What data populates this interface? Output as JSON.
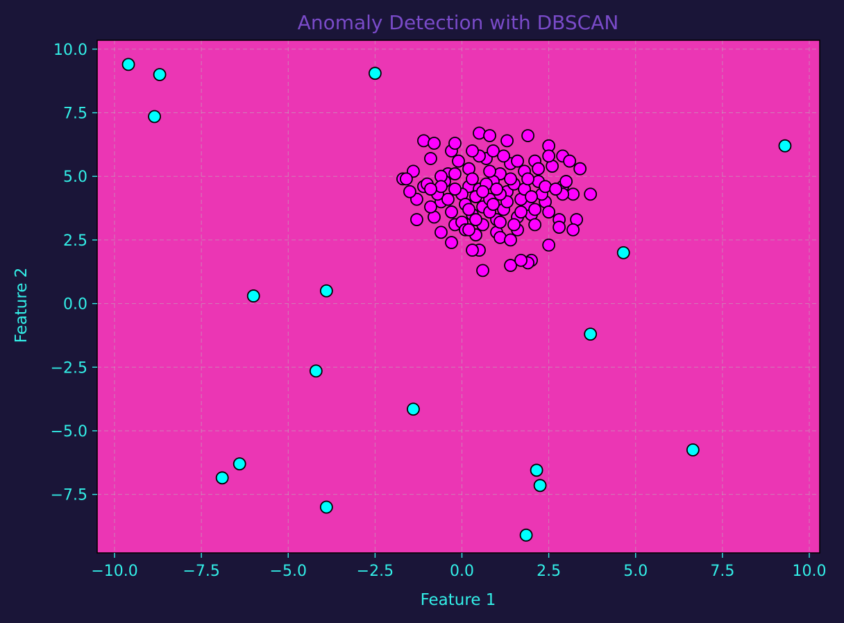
{
  "chart_data": {
    "type": "scatter",
    "title": "Anomaly Detection with DBSCAN",
    "xlabel": "Feature 1",
    "ylabel": "Feature 2",
    "xlim": [
      -10.5,
      10.3
    ],
    "ylim": [
      -9.8,
      10.35
    ],
    "xticks": [
      -10.0,
      -7.5,
      -5.0,
      -2.5,
      0.0,
      2.5,
      5.0,
      7.5,
      10.0
    ],
    "yticks": [
      -7.5,
      -5.0,
      -2.5,
      0.0,
      2.5,
      5.0,
      7.5,
      10.0
    ],
    "xtick_labels": [
      "−10.0",
      "−7.5",
      "−5.0",
      "−2.5",
      "0.0",
      "2.5",
      "5.0",
      "7.5",
      "10.0"
    ],
    "ytick_labels": [
      "−7.5",
      "−5.0",
      "−2.5",
      "0.0",
      "2.5",
      "5.0",
      "7.5",
      "10.0"
    ],
    "grid": true,
    "colors": {
      "background": "#1a1538",
      "plot_area": "#eb36b4",
      "cluster": "#ff00ff",
      "anomaly": "#00ffff",
      "edge": "#000000",
      "axis_text": "#33f0e8",
      "title": "#7a4bc9",
      "grid": "#b9b9b9"
    },
    "series": [
      {
        "points": [
          [
            1.8,
            5.2
          ],
          [
            0.2,
            4.6
          ],
          [
            -0.6,
            4.0
          ],
          [
            1.0,
            3.3
          ],
          [
            0.7,
            5.7
          ],
          [
            -0.2,
            3.1
          ],
          [
            2.4,
            4.0
          ],
          [
            0.4,
            2.7
          ],
          [
            1.3,
            4.4
          ],
          [
            -1.1,
            4.6
          ],
          [
            0.9,
            6.0
          ],
          [
            2.0,
            3.5
          ],
          [
            -0.4,
            5.1
          ],
          [
            0.6,
            3.8
          ],
          [
            1.6,
            2.9
          ],
          [
            0.0,
            4.3
          ],
          [
            2.2,
            4.8
          ],
          [
            -0.8,
            3.4
          ],
          [
            1.1,
            5.1
          ],
          [
            0.3,
            3.5
          ],
          [
            1.5,
            4.7
          ],
          [
            -0.1,
            5.6
          ],
          [
            0.8,
            4.1
          ],
          [
            2.6,
            5.4
          ],
          [
            1.9,
            3.9
          ],
          [
            -0.5,
            4.8
          ],
          [
            0.5,
            4.5
          ],
          [
            1.2,
            3.7
          ],
          [
            0.1,
            3.9
          ],
          [
            2.3,
            4.3
          ],
          [
            -0.3,
            3.6
          ],
          [
            0.9,
            4.8
          ],
          [
            1.4,
            5.5
          ],
          [
            0.6,
            3.1
          ],
          [
            -0.7,
            4.3
          ],
          [
            1.7,
            4.1
          ],
          [
            0.2,
            5.3
          ],
          [
            2.9,
            4.6
          ],
          [
            1.0,
            2.8
          ],
          [
            -1.3,
            4.1
          ],
          [
            0.4,
            4.2
          ],
          [
            1.6,
            3.4
          ],
          [
            0.0,
            3.2
          ],
          [
            2.1,
            5.6
          ],
          [
            0.7,
            4.7
          ],
          [
            1.3,
            4.0
          ],
          [
            -0.2,
            4.5
          ],
          [
            0.8,
            3.6
          ],
          [
            1.8,
            4.5
          ],
          [
            0.3,
            4.9
          ],
          [
            1.1,
            4.3
          ],
          [
            -0.9,
            3.8
          ],
          [
            0.5,
            5.8
          ],
          [
            2.5,
            3.6
          ],
          [
            1.5,
            3.1
          ],
          [
            0.1,
            2.9
          ],
          [
            1.9,
            4.9
          ],
          [
            -0.4,
            4.1
          ],
          [
            0.9,
            3.9
          ],
          [
            1.2,
            5.8
          ],
          [
            0.6,
            4.4
          ],
          [
            2.0,
            4.2
          ],
          [
            -0.6,
            5.0
          ],
          [
            0.2,
            3.7
          ],
          [
            1.4,
            4.9
          ],
          [
            0.8,
            5.2
          ],
          [
            -1.0,
            4.7
          ],
          [
            1.7,
            3.6
          ],
          [
            0.4,
            3.3
          ],
          [
            1.0,
            4.5
          ],
          [
            -1.7,
            4.9
          ],
          [
            -1.4,
            5.2
          ],
          [
            -1.5,
            4.4
          ],
          [
            -1.3,
            3.3
          ],
          [
            -1.1,
            6.4
          ],
          [
            -0.8,
            6.3
          ],
          [
            -0.9,
            5.7
          ],
          [
            -0.3,
            6.0
          ],
          [
            -0.2,
            6.3
          ],
          [
            0.3,
            6.0
          ],
          [
            0.5,
            6.7
          ],
          [
            0.8,
            6.6
          ],
          [
            1.3,
            6.4
          ],
          [
            1.9,
            6.6
          ],
          [
            2.5,
            6.2
          ],
          [
            2.5,
            5.8
          ],
          [
            2.9,
            5.8
          ],
          [
            3.1,
            5.6
          ],
          [
            3.4,
            5.3
          ],
          [
            3.7,
            4.3
          ],
          [
            3.2,
            4.3
          ],
          [
            2.9,
            4.3
          ],
          [
            2.8,
            3.3
          ],
          [
            3.3,
            3.3
          ],
          [
            3.2,
            2.9
          ],
          [
            2.8,
            3.0
          ],
          [
            2.1,
            3.1
          ],
          [
            2.5,
            2.3
          ],
          [
            2.0,
            1.7
          ],
          [
            1.9,
            1.6
          ],
          [
            1.4,
            1.5
          ],
          [
            0.6,
            1.3
          ],
          [
            0.5,
            2.1
          ],
          [
            -0.3,
            2.4
          ],
          [
            -0.6,
            2.8
          ],
          [
            0.2,
            2.9
          ],
          [
            0.3,
            2.1
          ],
          [
            1.1,
            2.6
          ],
          [
            1.4,
            2.5
          ],
          [
            1.7,
            1.7
          ],
          [
            -0.6,
            4.6
          ],
          [
            -0.2,
            5.1
          ],
          [
            2.2,
            5.3
          ],
          [
            1.6,
            5.6
          ],
          [
            2.4,
            4.6
          ],
          [
            1.1,
            3.2
          ],
          [
            -0.9,
            4.5
          ],
          [
            -1.6,
            4.9
          ],
          [
            3.0,
            4.8
          ],
          [
            2.7,
            4.5
          ],
          [
            2.1,
            3.7
          ]
        ]
      },
      {
        "points": [
          [
            -9.6,
            9.4
          ],
          [
            -8.7,
            9.0
          ],
          [
            -8.85,
            7.35
          ],
          [
            -2.5,
            9.05
          ],
          [
            9.3,
            6.2
          ],
          [
            4.65,
            2.0
          ],
          [
            -6.0,
            0.3
          ],
          [
            -3.9,
            0.5
          ],
          [
            3.7,
            -1.2
          ],
          [
            -4.2,
            -2.65
          ],
          [
            -1.4,
            -4.15
          ],
          [
            6.65,
            -5.75
          ],
          [
            -6.4,
            -6.3
          ],
          [
            -6.9,
            -6.85
          ],
          [
            2.15,
            -6.55
          ],
          [
            2.25,
            -7.15
          ],
          [
            -3.9,
            -8.0
          ],
          [
            1.85,
            -9.1
          ]
        ]
      }
    ]
  }
}
